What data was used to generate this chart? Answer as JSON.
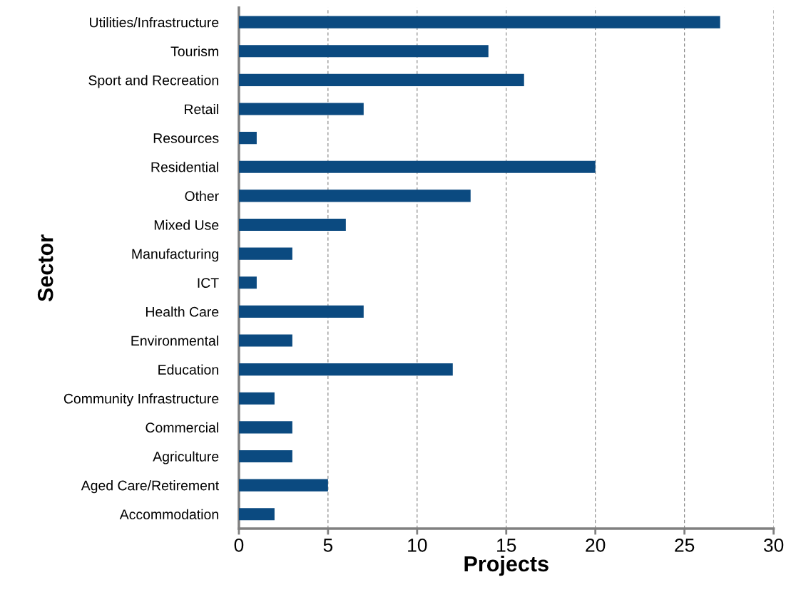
{
  "chart_data": {
    "type": "bar",
    "orientation": "horizontal",
    "xlabel": "Projects",
    "ylabel": "Sector",
    "categories": [
      "Utilities/Infrastructure",
      "Tourism",
      "Sport and Recreation",
      "Retail",
      "Resources",
      "Residential",
      "Other",
      "Mixed Use",
      "Manufacturing",
      "ICT",
      "Health Care",
      "Environmental",
      "Education",
      "Community Infrastructure",
      "Commercial",
      "Agriculture",
      "Aged Care/Retirement",
      "Accommodation"
    ],
    "values": [
      27,
      14,
      16,
      7,
      1,
      20,
      13,
      6,
      3,
      1,
      7,
      3,
      12,
      2,
      3,
      3,
      5,
      2
    ],
    "color": "#0b4a80",
    "xlim": [
      0,
      30
    ],
    "xticks": [
      0,
      5,
      10,
      15,
      20,
      25,
      30
    ],
    "grid": "x",
    "legend": false
  }
}
